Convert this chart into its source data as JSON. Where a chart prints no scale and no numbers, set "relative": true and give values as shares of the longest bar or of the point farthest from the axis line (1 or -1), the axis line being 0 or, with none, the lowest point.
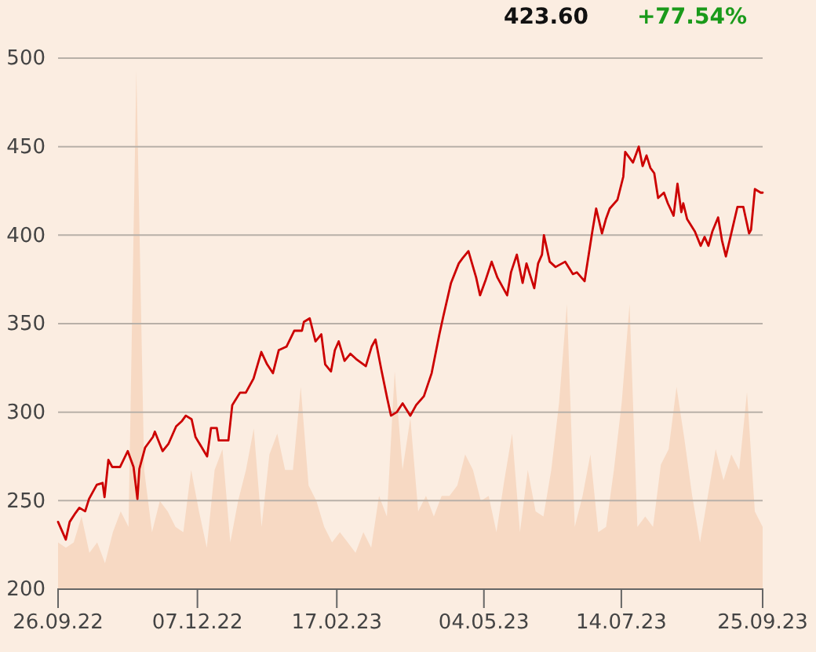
{
  "chart_data": [
    {
      "type": "line",
      "annotations": [
        "423.60",
        "+77.54%"
      ],
      "x": [
        "2022-09-26",
        "2022-09-30",
        "2022-10-02",
        "2022-10-05",
        "2022-10-07",
        "2022-10-10",
        "2022-10-12",
        "2022-10-16",
        "2022-10-19",
        "2022-10-20",
        "2022-10-22",
        "2022-10-24",
        "2022-10-28",
        "2022-11-01",
        "2022-11-04",
        "2022-11-06",
        "2022-11-07",
        "2022-11-10",
        "2022-11-14",
        "2022-11-15",
        "2022-11-19",
        "2022-11-22",
        "2022-11-26",
        "2022-11-29",
        "2022-12-01",
        "2022-12-04",
        "2022-12-06",
        "2022-12-12",
        "2022-12-14",
        "2022-12-17",
        "2022-12-18",
        "2022-12-23",
        "2022-12-25",
        "2022-12-29",
        "2023-01-01",
        "2023-01-05",
        "2023-01-09",
        "2023-01-12",
        "2023-01-15",
        "2023-01-18",
        "2023-01-22",
        "2023-01-26",
        "2023-01-30",
        "2023-01-31",
        "2023-02-03",
        "2023-02-06",
        "2023-02-09",
        "2023-02-11",
        "2023-02-14",
        "2023-02-16",
        "2023-02-18",
        "2023-02-21",
        "2023-02-24",
        "2023-02-27",
        "2023-03-04",
        "2023-03-07",
        "2023-03-09",
        "2023-03-12",
        "2023-03-15",
        "2023-03-17",
        "2023-03-20",
        "2023-03-23",
        "2023-03-27",
        "2023-03-30",
        "2023-04-03",
        "2023-04-07",
        "2023-04-11",
        "2023-04-13",
        "2023-04-17",
        "2023-04-21",
        "2023-04-23",
        "2023-04-26",
        "2023-04-30",
        "2023-05-02",
        "2023-05-05",
        "2023-05-08",
        "2023-05-11",
        "2023-05-16",
        "2023-05-18",
        "2023-05-21",
        "2023-05-24",
        "2023-05-26",
        "2023-05-30",
        "2023-06-01",
        "2023-06-03",
        "2023-06-04",
        "2023-06-07",
        "2023-06-10",
        "2023-06-15",
        "2023-06-19",
        "2023-06-21",
        "2023-06-25",
        "2023-06-29",
        "2023-07-01",
        "2023-07-04",
        "2023-07-06",
        "2023-07-08",
        "2023-07-12",
        "2023-07-15",
        "2023-07-16",
        "2023-07-20",
        "2023-07-23",
        "2023-07-25",
        "2023-07-27",
        "2023-07-29",
        "2023-07-31",
        "2023-08-02",
        "2023-08-05",
        "2023-08-07",
        "2023-08-10",
        "2023-08-12",
        "2023-08-14",
        "2023-08-15",
        "2023-08-17",
        "2023-08-21",
        "2023-08-24",
        "2023-08-26",
        "2023-08-28",
        "2023-08-30",
        "2023-09-02",
        "2023-09-04",
        "2023-09-06",
        "2023-09-09",
        "2023-09-12",
        "2023-09-15",
        "2023-09-18",
        "2023-09-19",
        "2023-09-21",
        "2023-09-24",
        "2023-09-25"
      ],
      "series": [
        {
          "color": "#cc0000",
          "values": [
            238,
            228,
            238,
            243,
            246,
            244,
            251,
            259,
            260,
            252,
            273,
            269,
            269,
            278,
            269,
            251,
            268,
            280,
            286,
            289,
            278,
            282,
            292,
            295,
            298,
            296,
            286,
            275,
            291,
            291,
            284,
            284,
            304,
            311,
            311,
            319,
            334,
            327,
            322,
            335,
            337,
            346,
            346,
            351,
            353,
            340,
            344,
            327,
            323,
            335,
            340,
            329,
            333,
            330,
            326,
            337,
            341,
            324,
            308,
            298,
            300,
            305,
            298,
            304,
            309,
            322,
            344,
            354,
            373,
            384,
            387,
            391,
            376,
            366,
            375,
            385,
            376,
            366,
            379,
            389,
            373,
            384,
            370,
            384,
            389,
            400,
            385,
            382,
            385,
            378,
            379,
            374,
            402,
            415,
            401,
            409,
            415,
            420,
            433,
            447,
            441,
            450,
            439,
            445,
            438,
            435,
            421,
            424,
            418,
            411,
            429,
            413,
            418,
            409,
            402,
            394,
            399,
            394,
            402,
            410,
            397,
            388,
            402,
            416,
            416,
            401,
            403,
            426,
            424,
            424
          ]
        }
      ],
      "xlim": [
        "2022-09-26",
        "2023-09-25"
      ],
      "xticks": [
        {
          "value": "2022-09-26",
          "label": "26.09.22"
        },
        {
          "value": "2022-12-07",
          "label": "07.12.22"
        },
        {
          "value": "2023-02-17",
          "label": "17.02.23"
        },
        {
          "value": "2023-05-04",
          "label": "04.05.23"
        },
        {
          "value": "2023-07-14",
          "label": "14.07.23"
        },
        {
          "value": "2023-09-25",
          "label": "25.09.23"
        }
      ],
      "ylim": [
        200,
        500
      ],
      "yticks": [
        200,
        250,
        300,
        350,
        400,
        450,
        500
      ],
      "grid": "y"
    },
    {
      "type": "area",
      "relative": true,
      "tick_labels": false,
      "color": "#f7d9c3",
      "categories": [
        null,
        null,
        null,
        null,
        null,
        null,
        null,
        null,
        null,
        null,
        null,
        null,
        null,
        null,
        null,
        null,
        null,
        null,
        null,
        null,
        null,
        null,
        null,
        null,
        null,
        null,
        null,
        null,
        null,
        null,
        null,
        null,
        null,
        null,
        null,
        null,
        null,
        null,
        null,
        null,
        null,
        null,
        null,
        null,
        null,
        null,
        null,
        null,
        null,
        null,
        null,
        null,
        null,
        null,
        null,
        null,
        null,
        null,
        null,
        null,
        null,
        null,
        null,
        null,
        null,
        null,
        null,
        null,
        null,
        null,
        null,
        null,
        null,
        null,
        null,
        null,
        null,
        null,
        null,
        null,
        null,
        null,
        null,
        null,
        null,
        null,
        null,
        null,
        null,
        null,
        null
      ],
      "values": [
        0.09,
        0.08,
        0.09,
        0.14,
        0.07,
        0.09,
        0.05,
        0.11,
        0.15,
        0.12,
        1,
        0.23,
        0.11,
        0.17,
        0.15,
        0.12,
        0.11,
        0.23,
        0.15,
        0.08,
        0.23,
        0.27,
        0.09,
        0.17,
        0.23,
        0.31,
        0.12,
        0.26,
        0.3,
        0.23,
        0.23,
        0.39,
        0.2,
        0.17,
        0.12,
        0.09,
        0.11,
        0.09,
        0.07,
        0.11,
        0.08,
        0.18,
        0.14,
        0.42,
        0.23,
        0.33,
        0.15,
        0.18,
        0.14,
        0.18,
        0.18,
        0.2,
        0.26,
        0.23,
        0.17,
        0.18,
        0.11,
        0.21,
        0.3,
        0.11,
        0.23,
        0.15,
        0.14,
        0.23,
        0.36,
        0.55,
        0.12,
        0.18,
        0.26,
        0.11,
        0.12,
        0.23,
        0.36,
        0.55,
        0.12,
        0.14,
        0.12,
        0.24,
        0.27,
        0.39,
        0.29,
        0.18,
        0.09,
        0.18,
        0.27,
        0.21,
        0.26,
        0.23,
        0.38,
        0.15,
        0.12
      ]
    }
  ]
}
